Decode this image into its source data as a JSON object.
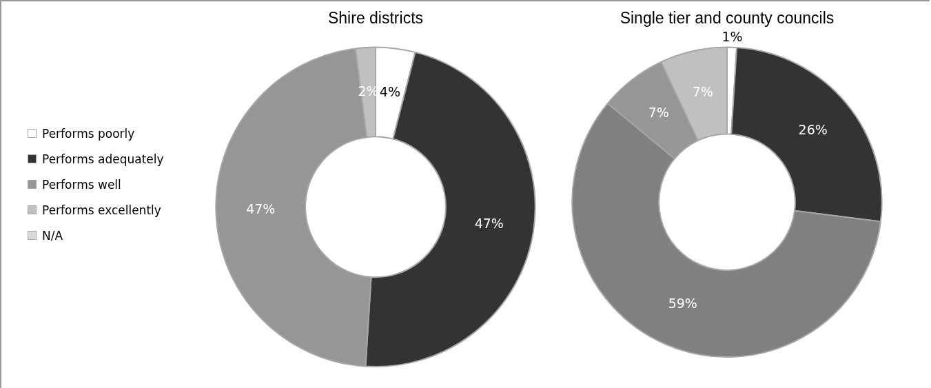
{
  "chart_data": [
    {
      "type": "donut",
      "title": "Shire districts",
      "categories": [
        "Performs poorly",
        "Performs adequately",
        "Performs well",
        "Performs excellently",
        "N/A"
      ],
      "values": [
        4,
        47,
        47,
        2,
        0
      ],
      "value_labels": [
        "4%",
        "47%",
        "47%",
        "2%",
        null
      ],
      "colors": [
        "#ffffff",
        "#333333",
        "#969696",
        "#c0c0c0",
        "#d9d9d9"
      ],
      "legend": "left"
    },
    {
      "type": "donut",
      "title": "Single tier and county councils",
      "categories": [
        null,
        null,
        null,
        null,
        null
      ],
      "values": [
        1,
        26,
        59,
        7,
        7
      ],
      "value_labels": [
        "1%",
        "26%",
        "59%",
        "7%",
        "7%"
      ],
      "colors": [
        "#ffffff",
        "#333333",
        "#808080",
        "#969696",
        "#c0c0c0"
      ],
      "legend": false
    }
  ]
}
